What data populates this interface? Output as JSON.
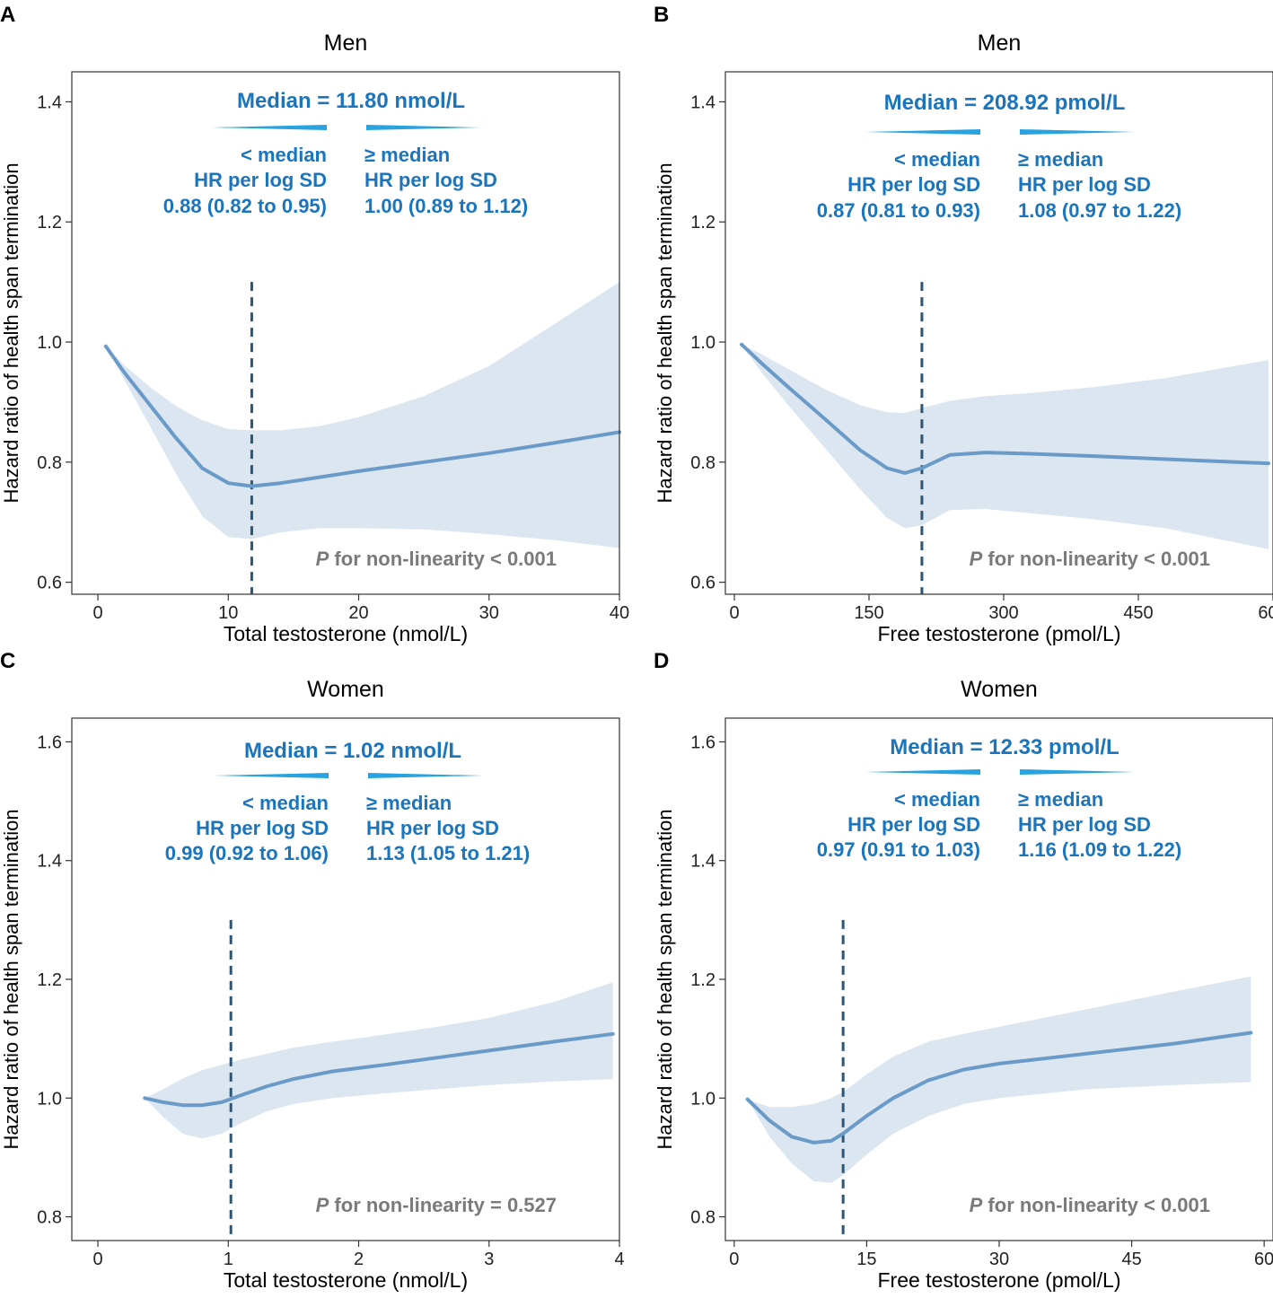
{
  "figure_title": "Restricted cubic spline plots of testosterone and hazard ratio of health span termination",
  "colors": {
    "curve": "#6a9bc8",
    "band": "#dbe6f1",
    "median_line": "#2f5574",
    "annotation": "#1a75bc",
    "median_bar": "#29a3e0",
    "pvalue": "#7a7a7a",
    "axis": "#333333"
  },
  "chart_data": [
    {
      "type": "line",
      "panel_label": "A",
      "title": "Men",
      "xlabel": "Total testosterone (nmol/L)",
      "ylabel": "Hazard ratio of health span termination",
      "xlim": [
        -2,
        40
      ],
      "ylim": [
        0.58,
        1.45
      ],
      "x_ticks": [
        0,
        10,
        20,
        30,
        40
      ],
      "x_tick_labels": [
        "0",
        "10",
        "20",
        "30",
        "40"
      ],
      "y_ticks": [
        0.6,
        0.8,
        1.0,
        1.2,
        1.4
      ],
      "y_tick_labels": [
        "0.6",
        "0.8",
        "1.0",
        "1.2",
        "1.4"
      ],
      "median_value": 11.8,
      "median_line_top": 1.1,
      "median_text": "Median = 11.80 nmol/L",
      "below_label": "< median",
      "above_label": "≥ median",
      "hr_label": "HR per log SD",
      "below_hr": "0.88 (0.82 to 0.95)",
      "above_hr": "1.00 (0.89 to 1.12)",
      "p_italic": "P",
      "p_rest": " for non-linearity < 0.001",
      "x": [
        0.6,
        2,
        4,
        6,
        8,
        10,
        11.8,
        14,
        17,
        20,
        25,
        30,
        35,
        40
      ],
      "y": [
        0.993,
        0.95,
        0.895,
        0.84,
        0.79,
        0.765,
        0.76,
        0.765,
        0.775,
        0.785,
        0.8,
        0.815,
        0.832,
        0.85
      ],
      "upper": [
        0.993,
        0.962,
        0.925,
        0.893,
        0.87,
        0.855,
        0.853,
        0.853,
        0.86,
        0.875,
        0.91,
        0.96,
        1.03,
        1.1
      ],
      "lower": [
        0.993,
        0.938,
        0.86,
        0.78,
        0.71,
        0.675,
        0.672,
        0.683,
        0.69,
        0.69,
        0.688,
        0.68,
        0.67,
        0.657
      ]
    },
    {
      "type": "line",
      "panel_label": "B",
      "title": "Men",
      "xlabel": "Free testosterone (pmol/L)",
      "ylabel": "Hazard ratio of health span termination",
      "xlim": [
        -10,
        600
      ],
      "ylim": [
        0.58,
        1.45
      ],
      "x_ticks": [
        0,
        150,
        300,
        450,
        600
      ],
      "x_tick_labels": [
        "0",
        "150",
        "300",
        "450",
        "600"
      ],
      "y_ticks": [
        0.6,
        0.8,
        1.0,
        1.2,
        1.4
      ],
      "y_tick_labels": [
        "0.6",
        "0.8",
        "1.0",
        "1.2",
        "1.4"
      ],
      "median_value": 208.92,
      "median_line_top": 1.1,
      "median_text": "Median = 208.92 pmol/L",
      "below_label": "< median",
      "above_label": "≥ median",
      "hr_label": "HR per log SD",
      "below_hr": "0.87 (0.81 to 0.93)",
      "above_hr": "1.08 (0.97 to 1.22)",
      "p_italic": "P",
      "p_rest": " for non-linearity  < 0.001",
      "x": [
        8,
        30,
        60,
        100,
        140,
        170,
        190,
        209,
        240,
        280,
        330,
        400,
        480,
        595
      ],
      "y": [
        0.996,
        0.965,
        0.925,
        0.873,
        0.82,
        0.79,
        0.782,
        0.79,
        0.812,
        0.816,
        0.814,
        0.81,
        0.805,
        0.798
      ],
      "upper": [
        0.996,
        0.98,
        0.955,
        0.922,
        0.895,
        0.883,
        0.882,
        0.89,
        0.902,
        0.91,
        0.915,
        0.925,
        0.94,
        0.97
      ],
      "lower": [
        0.996,
        0.95,
        0.895,
        0.825,
        0.755,
        0.707,
        0.69,
        0.695,
        0.72,
        0.722,
        0.715,
        0.705,
        0.69,
        0.655
      ]
    },
    {
      "type": "line",
      "panel_label": "C",
      "title": "Women",
      "xlabel": "Total testosterone (nmol/L)",
      "ylabel": "Hazard ratio of health span termination",
      "xlim": [
        -0.2,
        4
      ],
      "ylim": [
        0.76,
        1.64
      ],
      "x_ticks": [
        0,
        1,
        2,
        3,
        4
      ],
      "x_tick_labels": [
        "0",
        "1",
        "2",
        "3",
        "4"
      ],
      "y_ticks": [
        0.8,
        1.0,
        1.2,
        1.4,
        1.6
      ],
      "y_tick_labels": [
        "0.8",
        "1.0",
        "1.2",
        "1.4",
        "1.6"
      ],
      "median_value": 1.02,
      "median_line_top": 1.3,
      "median_text": "Median = 1.02 nmol/L",
      "below_label": "< median",
      "above_label": "≥ median",
      "hr_label": "HR per log SD",
      "below_hr": "0.99 (0.92 to 1.06)",
      "above_hr": "1.13 (1.05 to 1.21)",
      "p_italic": "P",
      "p_rest": " for non-linearity = 0.527",
      "x": [
        0.36,
        0.5,
        0.65,
        0.8,
        0.95,
        1.1,
        1.3,
        1.5,
        1.8,
        2.2,
        2.6,
        3.0,
        3.5,
        3.95
      ],
      "y": [
        1.0,
        0.993,
        0.988,
        0.988,
        0.993,
        1.005,
        1.02,
        1.032,
        1.045,
        1.056,
        1.068,
        1.08,
        1.095,
        1.108
      ],
      "upper": [
        1.0,
        1.015,
        1.033,
        1.047,
        1.056,
        1.065,
        1.075,
        1.085,
        1.095,
        1.107,
        1.12,
        1.135,
        1.162,
        1.195
      ],
      "lower": [
        1.0,
        0.968,
        0.94,
        0.932,
        0.94,
        0.958,
        0.978,
        0.99,
        1.0,
        1.008,
        1.015,
        1.022,
        1.028,
        1.032
      ]
    },
    {
      "type": "line",
      "panel_label": "D",
      "title": "Women",
      "xlabel": "Free testosterone (pmol/L)",
      "ylabel": "Hazard ratio of health span termination",
      "xlim": [
        -1,
        61
      ],
      "ylim": [
        0.76,
        1.64
      ],
      "x_ticks": [
        0,
        15,
        30,
        45,
        60
      ],
      "x_tick_labels": [
        "0",
        "15",
        "30",
        "45",
        "60"
      ],
      "y_ticks": [
        0.8,
        1.0,
        1.2,
        1.4,
        1.6
      ],
      "y_tick_labels": [
        "0.8",
        "1.0",
        "1.2",
        "1.4",
        "1.6"
      ],
      "median_value": 12.33,
      "median_line_top": 1.3,
      "median_text": "Median = 12.33 pmol/L",
      "below_label": "< median",
      "above_label": "≥ median",
      "hr_label": "HR per log SD",
      "below_hr": "0.97 (0.91 to 1.03)",
      "above_hr": "1.16 (1.09 to 1.22)",
      "p_italic": "P",
      "p_rest": " for non-linearity < 0.001",
      "x": [
        1.5,
        4,
        6.5,
        9,
        11,
        12.3,
        15,
        18,
        22,
        26,
        30,
        40,
        50,
        58.5
      ],
      "y": [
        0.998,
        0.962,
        0.935,
        0.925,
        0.928,
        0.94,
        0.97,
        1.0,
        1.03,
        1.048,
        1.058,
        1.075,
        1.092,
        1.11
      ],
      "upper": [
        0.998,
        0.985,
        0.985,
        0.99,
        1.0,
        1.01,
        1.04,
        1.07,
        1.095,
        1.108,
        1.12,
        1.15,
        1.18,
        1.205
      ],
      "lower": [
        0.998,
        0.935,
        0.89,
        0.86,
        0.857,
        0.87,
        0.905,
        0.94,
        0.97,
        0.99,
        1.0,
        1.015,
        1.022,
        1.027
      ]
    }
  ]
}
